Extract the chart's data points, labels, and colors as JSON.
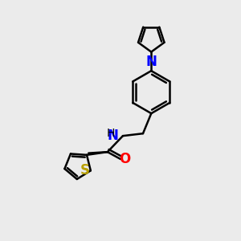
{
  "background_color": "#ebebeb",
  "bond_width": 1.8,
  "font_size": 11,
  "figsize": [
    3.0,
    3.0
  ],
  "dpi": 100,
  "xlim": [
    0.0,
    10.0
  ],
  "ylim": [
    0.0,
    10.0
  ]
}
